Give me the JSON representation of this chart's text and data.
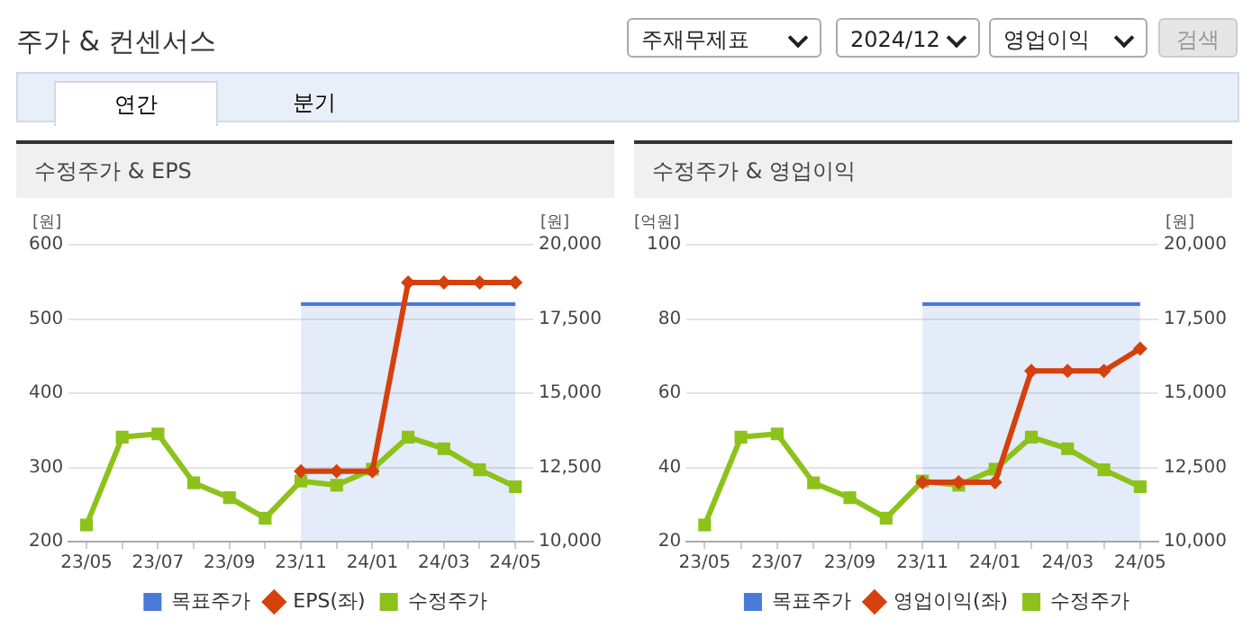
{
  "chart_data": [
    {
      "type": "other",
      "title": "주가 & 컨센서스",
      "annotations": [
        "주재무제표",
        "2024/12",
        "영업이익",
        "검색",
        "연간",
        "분기"
      ]
    },
    {
      "type": "line",
      "title": "수정주가 & EPS",
      "categories": [
        "23/05",
        null,
        "23/07",
        null,
        "23/09",
        null,
        "23/11",
        null,
        "24/01",
        null,
        "24/03",
        null,
        "24/05"
      ],
      "ylabel": "[원]",
      "y2label": "[원]",
      "ylim": [
        200,
        600
      ],
      "yticks": [
        200,
        300,
        400,
        500,
        600
      ],
      "y2lim": [
        10000,
        20000
      ],
      "y2ticks": [
        {
          "value": 10000,
          "label": "10,000"
        },
        {
          "value": 12500,
          "label": "12,500"
        },
        {
          "value": 15000,
          "label": "15,000"
        },
        {
          "value": 17500,
          "label": "17,500"
        },
        {
          "value": 20000,
          "label": "20,000"
        }
      ],
      "grid": "y",
      "legend": "bottom",
      "series": [
        {
          "name": "목표주가",
          "type": "area",
          "color": "#4a7ad8",
          "axis": "y2",
          "marker": "none",
          "values": [
            null,
            null,
            null,
            null,
            null,
            null,
            18000,
            18000,
            18000,
            18000,
            18000,
            18000,
            18000
          ]
        },
        {
          "name": "EPS(좌)",
          "type": "line",
          "color": "#d6400c",
          "marker": "diamond",
          "values": [
            null,
            null,
            null,
            null,
            null,
            null,
            295,
            295,
            295,
            549,
            549,
            549,
            549
          ]
        },
        {
          "name": "수정주가",
          "type": "line",
          "color": "#8cc21a",
          "marker": "square",
          "axis": "y2",
          "values": [
            10560,
            13520,
            13630,
            11980,
            11480,
            10790,
            12040,
            11900,
            12440,
            13520,
            13130,
            12420,
            11850
          ]
        }
      ]
    },
    {
      "type": "line",
      "title": "수정주가 & 영업이익",
      "categories": [
        "23/05",
        null,
        "23/07",
        null,
        "23/09",
        null,
        "23/11",
        null,
        "24/01",
        null,
        "24/03",
        null,
        "24/05"
      ],
      "ylabel": "[억원]",
      "y2label": "[원]",
      "ylim": [
        20,
        100
      ],
      "yticks": [
        20,
        40,
        60,
        80,
        100
      ],
      "y2lim": [
        10000,
        20000
      ],
      "y2ticks": [
        {
          "value": 10000,
          "label": "10,000"
        },
        {
          "value": 12500,
          "label": "12,500"
        },
        {
          "value": 15000,
          "label": "15,000"
        },
        {
          "value": 17500,
          "label": "17,500"
        },
        {
          "value": 20000,
          "label": "20,000"
        }
      ],
      "grid": "y",
      "legend": "bottom",
      "series": [
        {
          "name": "목표주가",
          "type": "area",
          "color": "#4a7ad8",
          "axis": "y2",
          "marker": "none",
          "values": [
            null,
            null,
            null,
            null,
            null,
            null,
            18000,
            18000,
            18000,
            18000,
            18000,
            18000,
            18000
          ]
        },
        {
          "name": "영업이익(좌)",
          "type": "line",
          "color": "#d6400c",
          "marker": "diamond",
          "values": [
            null,
            null,
            null,
            null,
            null,
            null,
            36,
            36,
            36,
            66,
            66,
            66,
            72
          ]
        },
        {
          "name": "수정주가",
          "type": "line",
          "color": "#8cc21a",
          "marker": "square",
          "axis": "y2",
          "values": [
            10560,
            13520,
            13630,
            11980,
            11480,
            10790,
            12040,
            11900,
            12440,
            13520,
            13130,
            12420,
            11850
          ]
        }
      ]
    }
  ]
}
